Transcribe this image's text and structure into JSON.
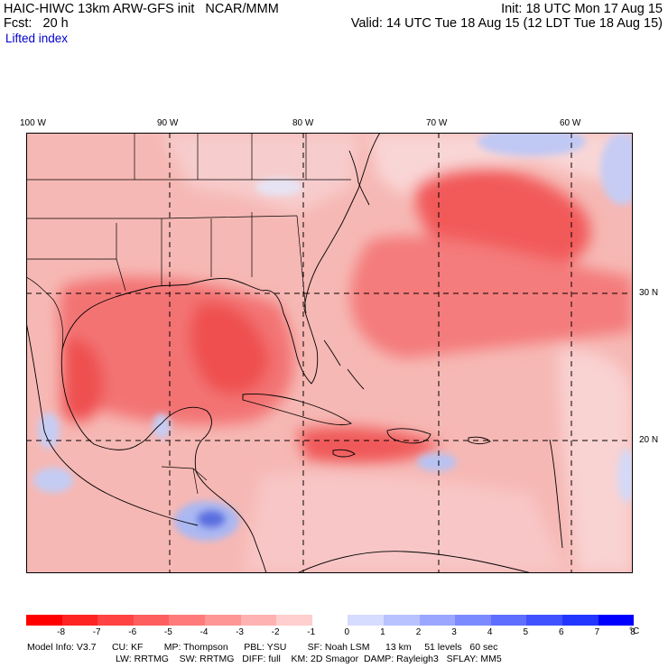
{
  "header": {
    "model_line": "HAIC-HIWC 13km ARW-GFS init   NCAR/MMM",
    "fcst_line": "Fcst:   20 h",
    "init_line": "Init: 18 UTC Mon 17 Aug 15",
    "valid_line": "Valid: 14 UTC Tue 18 Aug 15 (12 LDT Tue 18 Aug 15)",
    "field_name": "Lifted index"
  },
  "map": {
    "top_lon_labels": [
      "100 W",
      "90 W",
      "80 W",
      "70 W",
      "60 W"
    ],
    "right_lat_labels": [
      "30 N",
      "20 N"
    ],
    "colors": {
      "water": "#f6b8b4",
      "strong_red": "#ef3a3a",
      "mid_red": "#f36b6b",
      "light_red": "#f9cfcf",
      "blue": "#aab8f2",
      "deep_blue": "#5a6ee0",
      "lines": "#000000"
    }
  },
  "colorbar": {
    "colors": [
      "#ff0000",
      "#ff2424",
      "#ff4242",
      "#ff5e5e",
      "#ff7a7a",
      "#ff9696",
      "#ffb2b2",
      "#ffcece",
      "#ffffff",
      "#d6dcff",
      "#b8c2ff",
      "#9aa6ff",
      "#7c8aff",
      "#5e6eff",
      "#4052ff",
      "#2236ff",
      "#0000ff"
    ],
    "ticks": [
      "-8",
      "-7",
      "-6",
      "-5",
      "-4",
      "-3",
      "-2",
      "-1",
      "0",
      "1",
      "2",
      "3",
      "4",
      "5",
      "6",
      "7",
      "8"
    ],
    "unit": "°C"
  },
  "model_info": {
    "line1": "Model Info: V3.7      CU: KF        MP: Thompson      PBL: YSU        SF: Noah LSM      13 km     51 levels   60 sec",
    "line2": "LW: RRTMG    SW: RRTMG   DIFF: full    KM: 2D Smagor  DAMP: Rayleigh3   SFLAY: MM5"
  }
}
